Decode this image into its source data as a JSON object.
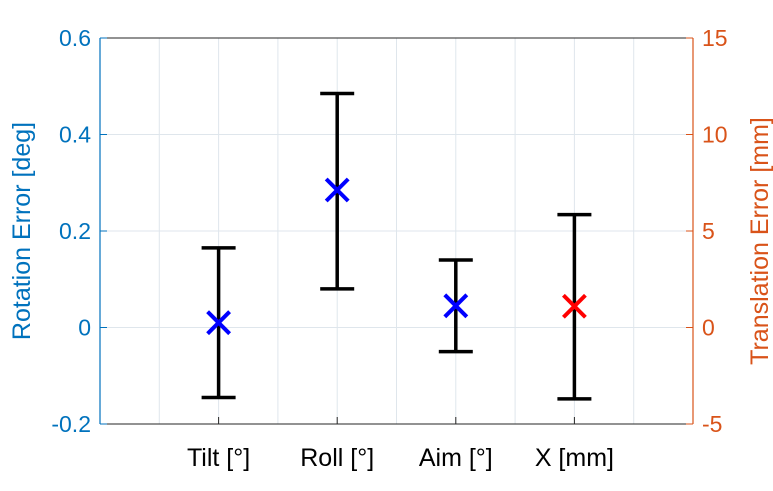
{
  "chart_data": {
    "type": "errorbar",
    "categories": [
      "Tilt [°]",
      "Roll [°]",
      "Aim [°]",
      "X [mm]"
    ],
    "left_axis": {
      "label": "Rotation Error [deg]",
      "ylim": [
        -0.2,
        0.6
      ],
      "ticks": [
        "-0.2",
        "0",
        "0.2",
        "0.4",
        "0.6"
      ],
      "tick_values": [
        -0.2,
        0,
        0.2,
        0.4,
        0.6
      ],
      "color": "#0072BD"
    },
    "right_axis": {
      "label": "Translation Error [mm]",
      "ylim": [
        -5,
        15
      ],
      "ticks": [
        "-5",
        "0",
        "5",
        "10",
        "15"
      ],
      "tick_values": [
        -5,
        0,
        5,
        10,
        15
      ],
      "color": "#D95319"
    },
    "series": [
      {
        "axis": "left",
        "color": "#0000FF",
        "marker": "x",
        "points": [
          {
            "category": "Tilt [°]",
            "value": 0.01,
            "lower": -0.145,
            "upper": 0.165
          },
          {
            "category": "Roll [°]",
            "value": 0.285,
            "lower": 0.08,
            "upper": 0.485
          },
          {
            "category": "Aim [°]",
            "value": 0.045,
            "lower": -0.05,
            "upper": 0.14
          }
        ]
      },
      {
        "axis": "right",
        "color": "#FF0000",
        "marker": "x",
        "points": [
          {
            "category": "X [mm]",
            "value": 1.1,
            "lower": -3.7,
            "upper": 5.85
          }
        ]
      }
    ],
    "errorbar_color": "#000000",
    "grid": true
  }
}
